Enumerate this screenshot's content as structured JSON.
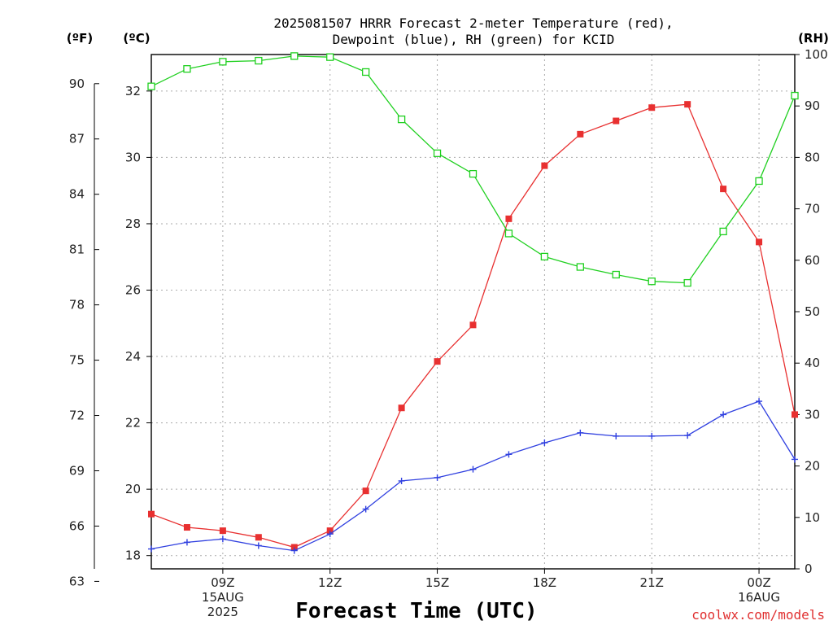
{
  "chart_data": {
    "type": "line",
    "title_line1": "2025081507 HRRR Forecast 2-meter Temperature (red),",
    "title_line2": "Dewpoint (blue), RH (green) for KCID",
    "left_unit_f": "(ºF)",
    "left_unit_c": "(ºC)",
    "right_unit": "(RH)",
    "xlabel": "Forecast Time (UTC)",
    "credit": "coolwx.com/models",
    "f_ticks": [
      "90",
      "87",
      "84",
      "81",
      "78",
      "75",
      "72",
      "69",
      "66",
      "63"
    ],
    "c_ticks": [
      "32",
      "30",
      "28",
      "26",
      "24",
      "22",
      "20",
      "18"
    ],
    "rh_ticks": [
      "100",
      "90",
      "80",
      "70",
      "60",
      "50",
      "40",
      "30",
      "20",
      "10",
      "0"
    ],
    "x_ticks": [
      {
        "hour": 9,
        "lines": [
          "09Z",
          "15AUG",
          "2025"
        ]
      },
      {
        "hour": 12,
        "lines": [
          "12Z"
        ]
      },
      {
        "hour": 15,
        "lines": [
          "15Z"
        ]
      },
      {
        "hour": 18,
        "lines": [
          "18Z"
        ]
      },
      {
        "hour": 21,
        "lines": [
          "21Z"
        ]
      },
      {
        "hour": 24,
        "lines": [
          "00Z",
          "16AUG"
        ]
      }
    ],
    "temp_range_c": [
      17.6,
      33.1
    ],
    "rh_range": [
      0,
      100
    ],
    "x_range_hours": [
      7,
      25
    ],
    "x_hours": [
      7,
      8,
      9,
      10,
      11,
      12,
      13,
      14,
      15,
      16,
      17,
      18,
      19,
      20,
      21,
      22,
      23,
      24,
      25
    ],
    "series": [
      {
        "color": "#e83030",
        "marker": "square-filled",
        "unit": "C",
        "values": [
          19.25,
          18.85,
          18.75,
          18.55,
          18.25,
          18.75,
          19.95,
          22.45,
          23.85,
          24.95,
          28.15,
          29.75,
          30.7,
          31.1,
          31.5,
          31.6,
          29.05,
          27.45,
          22.25
        ]
      },
      {
        "color": "#3040e0",
        "marker": "plus",
        "unit": "C",
        "values": [
          18.2,
          18.4,
          18.5,
          18.3,
          18.15,
          18.65,
          19.4,
          20.25,
          20.35,
          20.6,
          21.05,
          21.4,
          21.7,
          21.6,
          21.6,
          21.62,
          22.25,
          22.65,
          20.9
        ]
      },
      {
        "color": "#20d020",
        "marker": "square-open",
        "unit": "RH",
        "values": [
          93.8,
          97.2,
          98.6,
          98.8,
          99.7,
          99.5,
          96.6,
          87.4,
          80.8,
          76.8,
          65.2,
          60.7,
          58.7,
          57.2,
          55.9,
          55.6,
          65.6,
          75.4,
          92.0
        ]
      }
    ]
  }
}
